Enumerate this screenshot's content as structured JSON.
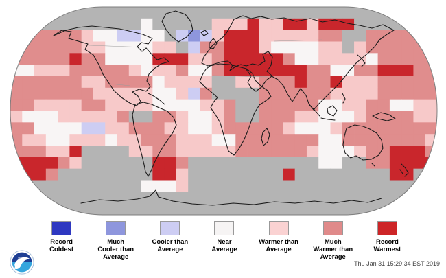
{
  "map": {
    "description": "Global land and ocean temperature percentiles gridded world map, Robinson projection",
    "grid_cols": 36,
    "grid_rows": 18,
    "palette": {
      "G": "#b4b4b4",
      "W": "#f8f5f5",
      "P": "#f7c9c9",
      "M": "#e08d8d",
      "R": "#c9262c",
      "C": "#cdcdf3",
      "B": "#8e96dd",
      "D": "#2e38c1"
    },
    "palette_meaning": {
      "G": "missing-data-gray",
      "W": "near-average",
      "P": "warmer-than-average",
      "M": "much-warmer-than-average",
      "R": "record-warmest",
      "C": "cooler-than-average",
      "B": "much-cooler-than-average",
      "D": "record-coldest"
    },
    "grid": [
      "GGGGGGGGGGGGGGGGGGGGGGGGGGGGGGGGGGGG",
      "GGGGGGGGGGGWGGGGGPPPRPPRRPRRRGGGGGGG",
      "GMMMMMPWWCCWWGCBCPRRRPPPPPMMGGMMMMMG",
      "MMMMMMPPWWWWPPGCMMRRRPWWWWPPGPMMMMMM",
      "MMMMMRMMWWWWRRRPPMRRRRRMWWPPPPWMMMMM",
      "WWPPPMMMMMPWPPMWWMRRRRRRRMMWWMMRRRMM",
      "MMMMMMPPMMMMWPPPPGGPPMMMRMMRPPPMMMMM",
      "MMMMMMMPPPPPWWPCMGGGGMMMMMMPPPPMMMMM",
      "MMPPPPMMPPPPWWWWPPMGGMMMMMWWPPMMWWPP",
      "PWWWPPPPPMGGMMPWWPMGGMMMPPWWWPMMMMPP",
      "MMWWWWCCPPMMMPPWWPMMMMMPWWWPMMMMMMMM",
      "MPPWWPPPWPPMMMPPPWWMMMMMMMWWMMMMMMMP",
      "MMMPPRGGGGPPMMPPPPPMMMMMMPWWWPMMRRRM",
      "RRRRMPGGGGGGRRMGGGGGGGGGGGWWGGMMRRRR",
      "RRRMGGGGGGGGRRPGGGGGGGGRGGGGGGGGRRGG",
      "GGGGGGGGGGGWWWPGGGGGGGGGGGGGGGGGGGGG",
      "GGGGGGGGGGGGGGGGGGGGGGGGGGGGGGGGGGGG",
      "GGGGGGGGGGGGGGGGGGGGGGGGGGGGGGGGGGGG"
    ]
  },
  "legend": {
    "items": [
      {
        "key": "record-coldest",
        "color": "#2e38c1",
        "label": "Record\nColdest"
      },
      {
        "key": "much-cooler",
        "color": "#8e96dd",
        "label": "Much\nCooler than\nAverage"
      },
      {
        "key": "cooler",
        "color": "#cdcdf3",
        "label": "Cooler than\nAverage"
      },
      {
        "key": "near-average",
        "color": "#f6f4f4",
        "label": "Near\nAverage"
      },
      {
        "key": "warmer",
        "color": "#fad2d2",
        "label": "Warmer than\nAverage"
      },
      {
        "key": "much-warmer",
        "color": "#e08a8a",
        "label": "Much\nWarmer than\nAverage"
      },
      {
        "key": "record-warmest",
        "color": "#cd2527",
        "label": "Record\nWarmest"
      }
    ]
  },
  "footer": {
    "timestamp": "Thu Jan 31 15:29:34 EST 2019"
  },
  "logo": {
    "colors": {
      "top": "#1e3f94",
      "bottom": "#34a5dd",
      "bird": "#ffffff"
    }
  }
}
